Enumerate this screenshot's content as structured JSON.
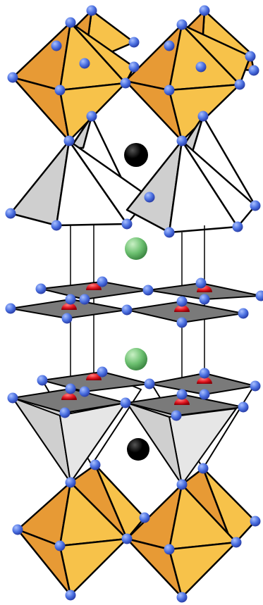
{
  "colors": {
    "background": "#ffffff",
    "octahedron_dark": "#e79a35",
    "octahedron_light": "#f7c24a",
    "pyramid_gray": "#cfcfcf",
    "pyramid_white": "#ffffff",
    "square_plane": "#7a7a7a",
    "edge": "#000000",
    "oxygen_atom": "#4a6fe0",
    "copper_atom": "#e0141e",
    "large_cation_black": "#000000",
    "large_cation_green": "#6cc070",
    "bond_line": "#000000"
  },
  "legend": []
}
